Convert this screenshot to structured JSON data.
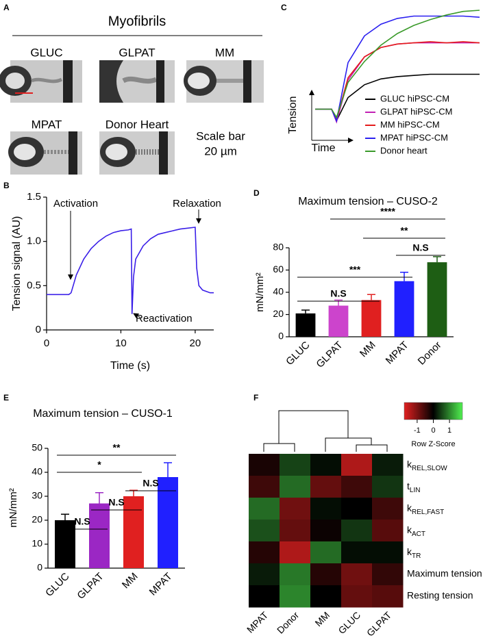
{
  "panel_labels": [
    "A",
    "B",
    "C",
    "D",
    "E",
    "F"
  ],
  "panel_a": {
    "title": "Myofibrils",
    "images": [
      "GLUC",
      "GLPAT",
      "MM",
      "MPAT",
      "Donor Heart"
    ],
    "scale_note": [
      "Scale bar",
      "20 µm"
    ]
  },
  "chart_data": [
    {
      "type": "line",
      "xlabel": "Time (s)",
      "ylabel": "Tension signal (AU)",
      "annotations": [
        "Activation",
        "Relaxation",
        "Reactivation"
      ],
      "x": [
        0,
        1,
        2,
        3,
        3.3,
        4,
        5,
        6,
        7,
        8,
        9,
        10,
        11,
        11.4,
        11.5,
        11.7,
        12,
        13,
        14,
        15,
        16,
        17,
        18,
        19,
        20,
        20.2,
        20.5,
        21,
        22,
        22.5
      ],
      "series": [
        {
          "color": "#3a1fe8",
          "values": [
            0.4,
            0.4,
            0.4,
            0.4,
            0.42,
            0.62,
            0.8,
            0.92,
            1.0,
            1.06,
            1.1,
            1.12,
            1.13,
            1.14,
            0.18,
            0.6,
            0.8,
            0.95,
            1.03,
            1.08,
            1.1,
            1.12,
            1.14,
            1.15,
            1.16,
            0.7,
            0.5,
            0.45,
            0.42,
            0.42
          ]
        }
      ],
      "xlim": [
        0,
        22.5
      ],
      "xticks": [
        0,
        10,
        20
      ],
      "ylim": [
        0,
        1.5
      ],
      "yticks": [
        0,
        0.5,
        {
          "value": 1,
          "label": "1.0"
        },
        1.5
      ]
    },
    {
      "type": "line",
      "xlabel": "Time",
      "ylabel": "Tension",
      "x": [
        0,
        1,
        1.3,
        2,
        3,
        4,
        5,
        6,
        7,
        8,
        9,
        10
      ],
      "series": [
        {
          "name": "GLUC hiPSC-CM",
          "color": "#000000",
          "values": [
            0.15,
            0.15,
            0.05,
            0.25,
            0.36,
            0.41,
            0.43,
            0.44,
            0.45,
            0.45,
            0.45,
            0.45
          ]
        },
        {
          "name": "GLPAT hiPSC-CM",
          "color": "#c21fb4",
          "values": [
            0.15,
            0.15,
            0.04,
            0.4,
            0.6,
            0.68,
            0.71,
            0.72,
            0.72,
            0.72,
            0.72,
            0.72
          ]
        },
        {
          "name": "MM hiPSC-CM",
          "color": "#e41a1a",
          "values": [
            0.15,
            0.15,
            0.06,
            0.42,
            0.6,
            0.68,
            0.71,
            0.72,
            0.73,
            0.72,
            0.73,
            0.72
          ]
        },
        {
          "name": "MPAT hiPSC-CM",
          "color": "#2a1ff0",
          "values": [
            0.15,
            0.15,
            0.05,
            0.55,
            0.78,
            0.88,
            0.93,
            0.95,
            0.95,
            0.95,
            0.95,
            0.94
          ]
        },
        {
          "name": "Donor heart",
          "color": "#3a9a2a",
          "values": [
            0.15,
            0.15,
            0.08,
            0.38,
            0.56,
            0.7,
            0.8,
            0.87,
            0.92,
            0.96,
            0.99,
            1.0
          ]
        }
      ],
      "xlim": [
        0,
        10
      ],
      "ylim": [
        0,
        1
      ]
    },
    {
      "type": "bar",
      "title": "Maximum tension – CUSO-2",
      "ylabel": "mN/mm²",
      "categories": [
        "GLUC",
        "GLPAT",
        "MM",
        "MPAT",
        "Donor"
      ],
      "values": [
        21,
        28,
        33,
        50,
        67
      ],
      "errors": [
        3,
        5,
        5,
        8,
        5
      ],
      "colors": [
        "#000000",
        "#cc44cc",
        "#e02020",
        "#2020ff",
        "#1e5e14"
      ],
      "ylim": [
        0,
        80
      ],
      "yticks": [
        0,
        20,
        40,
        60,
        80
      ],
      "comparisons": [
        {
          "between": [
            0,
            2
          ],
          "label": "N.S"
        },
        {
          "between": [
            0,
            3
          ],
          "label": "***"
        },
        {
          "between": [
            3,
            4
          ],
          "label": "N.S"
        },
        {
          "between": [
            2,
            4
          ],
          "label": "**"
        },
        {
          "between": [
            1,
            4
          ],
          "label": "****"
        }
      ]
    },
    {
      "type": "bar",
      "title": "Maximum tension – CUSO-1",
      "ylabel": "mN/mm²",
      "categories": [
        "GLUC",
        "GLPAT",
        "MM",
        "MPAT"
      ],
      "values": [
        20,
        27,
        30,
        38
      ],
      "errors": [
        2.5,
        4.5,
        2.5,
        6
      ],
      "colors": [
        "#000000",
        "#9b27c4",
        "#e02020",
        "#2020ff"
      ],
      "ylim": [
        0,
        50
      ],
      "yticks": [
        0,
        10,
        20,
        30,
        40,
        50
      ],
      "comparisons": [
        {
          "between": [
            0,
            1
          ],
          "label": "N.S"
        },
        {
          "between": [
            1,
            2
          ],
          "label": "N.S"
        },
        {
          "between": [
            2,
            3
          ],
          "label": "N.S"
        },
        {
          "between": [
            0,
            2
          ],
          "label": "*"
        },
        {
          "between": [
            0,
            3
          ],
          "label": "**"
        }
      ]
    },
    {
      "type": "heatmap",
      "colorbar_label": "Row Z-Score",
      "columns": [
        "MPAT",
        "Donor",
        "MM",
        "GLUC",
        "GLPAT"
      ],
      "rows": [
        {
          "text": "k",
          "sub": "REL,SLOW"
        },
        {
          "text": "t",
          "sub": "LIN"
        },
        {
          "text": "k",
          "sub": "REL,FAST"
        },
        {
          "text": "k",
          "sub": "ACT"
        },
        {
          "text": "k",
          "sub": "TR"
        },
        "Maximum tension",
        "Resting tension"
      ],
      "values": [
        [
          -0.2,
          0.5,
          0.1,
          -1.4,
          0.2
        ],
        [
          -0.5,
          0.8,
          -0.8,
          -0.5,
          0.4
        ],
        [
          0.8,
          -0.9,
          0.1,
          0,
          -0.5
        ],
        [
          0.6,
          -0.8,
          -0.1,
          0.4,
          -0.7
        ],
        [
          -0.3,
          -1.4,
          0.8,
          0.1,
          0.1
        ],
        [
          0.2,
          0.9,
          -0.3,
          -0.9,
          -0.4
        ],
        [
          0,
          1.0,
          0,
          -0.8,
          -0.7
        ]
      ],
      "zlim": [
        -1.8,
        1.8
      ],
      "zticks": [
        -1,
        0,
        1
      ],
      "colormap": [
        "#e02020",
        "#000000",
        "#50f050"
      ]
    }
  ]
}
